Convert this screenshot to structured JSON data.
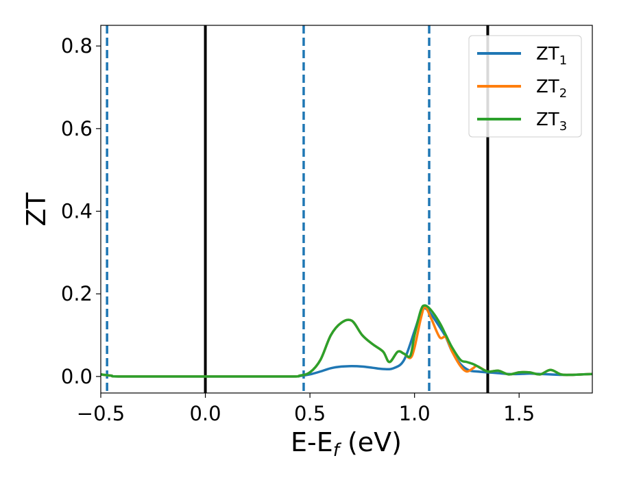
{
  "chart_data": {
    "type": "line",
    "title": "",
    "xlabel": {
      "main": "E-E",
      "sub": "f",
      "unit": " (eV)"
    },
    "ylabel": "ZT",
    "xlim": [
      -0.5,
      1.85
    ],
    "ylim": [
      -0.04,
      0.85
    ],
    "xticks": [
      -0.5,
      0.0,
      0.5,
      1.0,
      1.5
    ],
    "xtick_labels": [
      "−0.5",
      "0.0",
      "0.5",
      "1.0",
      "1.5"
    ],
    "yticks": [
      0.0,
      0.2,
      0.4,
      0.6,
      0.8
    ],
    "ytick_labels": [
      "0.0",
      "0.2",
      "0.4",
      "0.6",
      "0.8"
    ],
    "grid": false,
    "legend_position": "top-right",
    "vertical_lines": [
      {
        "x": -0.47,
        "style": "dashed",
        "color": "#1f77b4"
      },
      {
        "x": 0.0,
        "style": "solid",
        "color": "#000000"
      },
      {
        "x": 0.47,
        "style": "dashed",
        "color": "#1f77b4"
      },
      {
        "x": 1.07,
        "style": "dashed",
        "color": "#1f77b4"
      },
      {
        "x": 1.35,
        "style": "solid",
        "color": "#000000"
      }
    ],
    "series": [
      {
        "name": "ZT",
        "sub": "1",
        "color": "#1f77b4",
        "x": [
          -0.5,
          -0.45,
          -0.4,
          0.0,
          0.4,
          0.45,
          0.5,
          0.55,
          0.6,
          0.65,
          0.7,
          0.75,
          0.8,
          0.85,
          0.9,
          0.95,
          1.0,
          1.03,
          1.05,
          1.08,
          1.12,
          1.15,
          1.18,
          1.22,
          1.26,
          1.3,
          1.35,
          1.4,
          1.45,
          1.5,
          1.55,
          1.6,
          1.65,
          1.7,
          1.75,
          1.8,
          1.85
        ],
        "y": [
          0.005,
          0.002,
          0.0,
          0.0,
          0.0,
          0.001,
          0.005,
          0.012,
          0.02,
          0.024,
          0.025,
          0.024,
          0.021,
          0.018,
          0.02,
          0.04,
          0.11,
          0.155,
          0.165,
          0.15,
          0.12,
          0.095,
          0.06,
          0.03,
          0.015,
          0.012,
          0.01,
          0.008,
          0.006,
          0.006,
          0.007,
          0.006,
          0.005,
          0.004,
          0.004,
          0.005,
          0.006
        ]
      },
      {
        "name": "ZT",
        "sub": "2",
        "color": "#ff7f0e",
        "x": [
          -0.5,
          -0.45,
          -0.4,
          0.0,
          0.4,
          0.45,
          0.5,
          0.55,
          0.6,
          0.65,
          0.7,
          0.75,
          0.8,
          0.85,
          0.88,
          0.92,
          0.95,
          0.98,
          1.0,
          1.03,
          1.05,
          1.08,
          1.12,
          1.15,
          1.18,
          1.22,
          1.25,
          1.28,
          1.3,
          1.35,
          1.4,
          1.45,
          1.5,
          1.55,
          1.6,
          1.65,
          1.7,
          1.75,
          1.8,
          1.85
        ],
        "y": [
          0.005,
          0.002,
          0.0,
          0.0,
          0.0,
          0.002,
          0.01,
          0.04,
          0.1,
          0.13,
          0.135,
          0.1,
          0.078,
          0.06,
          0.035,
          0.06,
          0.055,
          0.045,
          0.07,
          0.14,
          0.168,
          0.14,
          0.095,
          0.095,
          0.06,
          0.025,
          0.012,
          0.02,
          0.025,
          0.012,
          0.014,
          0.005,
          0.01,
          0.01,
          0.005,
          0.016,
          0.005,
          0.004,
          0.005,
          0.006
        ]
      },
      {
        "name": "ZT",
        "sub": "3",
        "color": "#2ca02c",
        "x": [
          -0.5,
          -0.45,
          -0.4,
          0.0,
          0.4,
          0.45,
          0.5,
          0.55,
          0.6,
          0.65,
          0.7,
          0.75,
          0.8,
          0.85,
          0.88,
          0.92,
          0.95,
          0.98,
          1.0,
          1.03,
          1.05,
          1.08,
          1.12,
          1.15,
          1.18,
          1.22,
          1.25,
          1.28,
          1.3,
          1.35,
          1.4,
          1.45,
          1.5,
          1.55,
          1.6,
          1.65,
          1.7,
          1.75,
          1.8,
          1.85
        ],
        "y": [
          0.005,
          0.002,
          0.0,
          0.0,
          0.0,
          0.002,
          0.01,
          0.04,
          0.1,
          0.13,
          0.135,
          0.1,
          0.078,
          0.06,
          0.035,
          0.06,
          0.055,
          0.05,
          0.1,
          0.16,
          0.172,
          0.16,
          0.13,
          0.1,
          0.07,
          0.04,
          0.035,
          0.03,
          0.025,
          0.012,
          0.014,
          0.005,
          0.01,
          0.01,
          0.005,
          0.016,
          0.005,
          0.004,
          0.005,
          0.006
        ]
      }
    ]
  }
}
